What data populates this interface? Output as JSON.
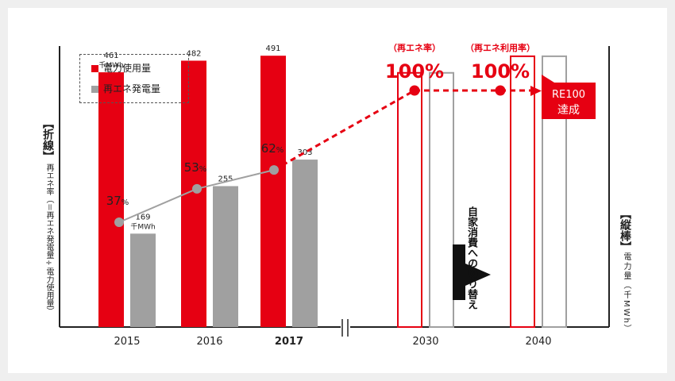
{
  "legend": {
    "items": [
      {
        "label": "電力使用量",
        "color": "#e60012"
      },
      {
        "label": "再エネ発電量",
        "color": "#a0a0a0"
      }
    ]
  },
  "left_axis": {
    "bracket_title": "【折線】",
    "label": "再エネ率（＝再エネ発電量÷電力使用量）"
  },
  "right_axis": {
    "bracket_title": "【縦棒】",
    "label": "電力量（千MWh）"
  },
  "switch_note": "自家消費への切り替え",
  "re100": {
    "line1": "RE100",
    "line2": "達成"
  },
  "chart_data": {
    "type": "bar",
    "categories": [
      "2015",
      "2016",
      "2017",
      "2030",
      "2040"
    ],
    "series": [
      {
        "name": "電力使用量",
        "color": "#e60012",
        "values": [
          461,
          482,
          491,
          460,
          490
        ],
        "labels": [
          "461",
          "482",
          "491",
          "",
          ""
        ],
        "unit_labels": [
          "千MWh",
          "",
          "",
          "",
          ""
        ]
      },
      {
        "name": "再エネ発電量",
        "color": "#a0a0a0",
        "values": [
          169,
          255,
          303,
          460,
          490
        ],
        "labels": [
          "169",
          "255",
          "303",
          "",
          ""
        ],
        "unit_labels": [
          "千MWh",
          "",
          "",
          "",
          ""
        ]
      }
    ],
    "projected_categories": [
      "2030",
      "2040"
    ],
    "line": {
      "name": "再エネ率",
      "values": [
        37,
        53,
        62,
        100,
        100
      ],
      "labels": [
        "37",
        "53",
        "62",
        "100%",
        "100%"
      ],
      "label_units": [
        "%",
        "%",
        "%",
        "",
        ""
      ],
      "captions": [
        "",
        "",
        "",
        "（再エネ率）",
        "（再エネ利用率）"
      ],
      "actual_color": "#a0a0a0",
      "projection_color": "#e60012"
    },
    "bar_ylim": [
      0,
      520
    ],
    "line_ylim": [
      0,
      100
    ]
  }
}
